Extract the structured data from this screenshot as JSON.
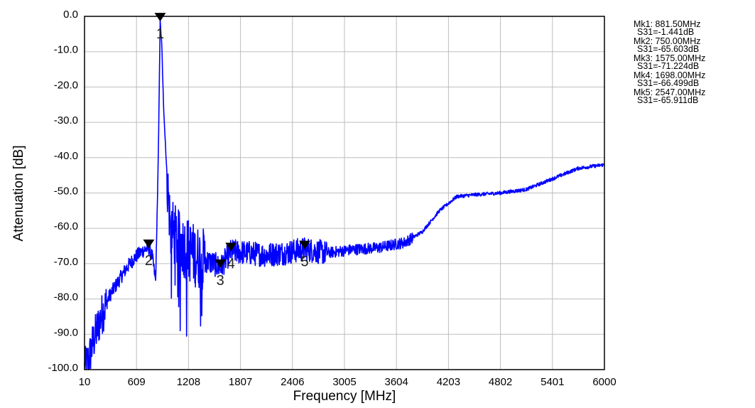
{
  "chart_data": {
    "type": "line",
    "title": "",
    "xlabel": "Frequency [MHz]",
    "ylabel": "Attenuation [dB]",
    "xlim": [
      10,
      6000
    ],
    "ylim": [
      -100,
      0
    ],
    "grid": true,
    "x_ticks": [
      "10",
      "609",
      "1208",
      "1807",
      "2406",
      "3005",
      "3604",
      "4203",
      "4802",
      "5401",
      "6000"
    ],
    "y_ticks": [
      "0.0",
      "-10.0",
      "-20.0",
      "-30.0",
      "-40.0",
      "-50.0",
      "-60.0",
      "-70.0",
      "-80.0",
      "-90.0",
      "-100.0"
    ],
    "series": [
      {
        "color": "#0000ff",
        "x": [
          10,
          60,
          100,
          150,
          200,
          300,
          400,
          500,
          600,
          700,
          750,
          790,
          830,
          860,
          881.5,
          900,
          920,
          960,
          1000,
          1100,
          1200,
          1300,
          1400,
          1500,
          1575,
          1698,
          1900,
          2100,
          2300,
          2547,
          2800,
          3100,
          3400,
          3700,
          3900,
          4100,
          4300,
          4500,
          4800,
          5100,
          5400,
          5700,
          6000
        ],
        "y": [
          -100,
          -97,
          -93,
          -89,
          -85,
          -79,
          -75,
          -71,
          -68,
          -66,
          -65.6,
          -68,
          -75,
          -40,
          -1.4,
          -8,
          -25,
          -45,
          -60,
          -64,
          -66,
          -68,
          -69,
          -70,
          -71.2,
          -66.5,
          -67,
          -67.5,
          -67,
          -65.9,
          -67,
          -66,
          -65.5,
          -64,
          -61,
          -55,
          -51,
          -50.5,
          -50,
          -49,
          -46,
          -43,
          -42
        ]
      }
    ],
    "markers": [
      {
        "label": "1",
        "x": 881.5,
        "y": -1.441
      },
      {
        "label": "2",
        "x": 750.0,
        "y": -65.603
      },
      {
        "label": "3",
        "x": 1575.0,
        "y": -71.224
      },
      {
        "label": "4",
        "x": 1698.0,
        "y": -66.499
      },
      {
        "label": "5",
        "x": 2547.0,
        "y": -65.911
      }
    ],
    "readout": [
      {
        "line1": "Mk1: 881.50MHz",
        "line2": "S31=-1.441dB"
      },
      {
        "line1": "Mk2: 750.00MHz",
        "line2": "S31=-65.603dB"
      },
      {
        "line1": "Mk3: 1575.00MHz",
        "line2": "S31=-71.224dB"
      },
      {
        "line1": "Mk4: 1698.00MHz",
        "line2": "S31=-66.499dB"
      },
      {
        "line1": "Mk5: 2547.00MHz",
        "line2": "S31=-65.911dB"
      }
    ]
  }
}
